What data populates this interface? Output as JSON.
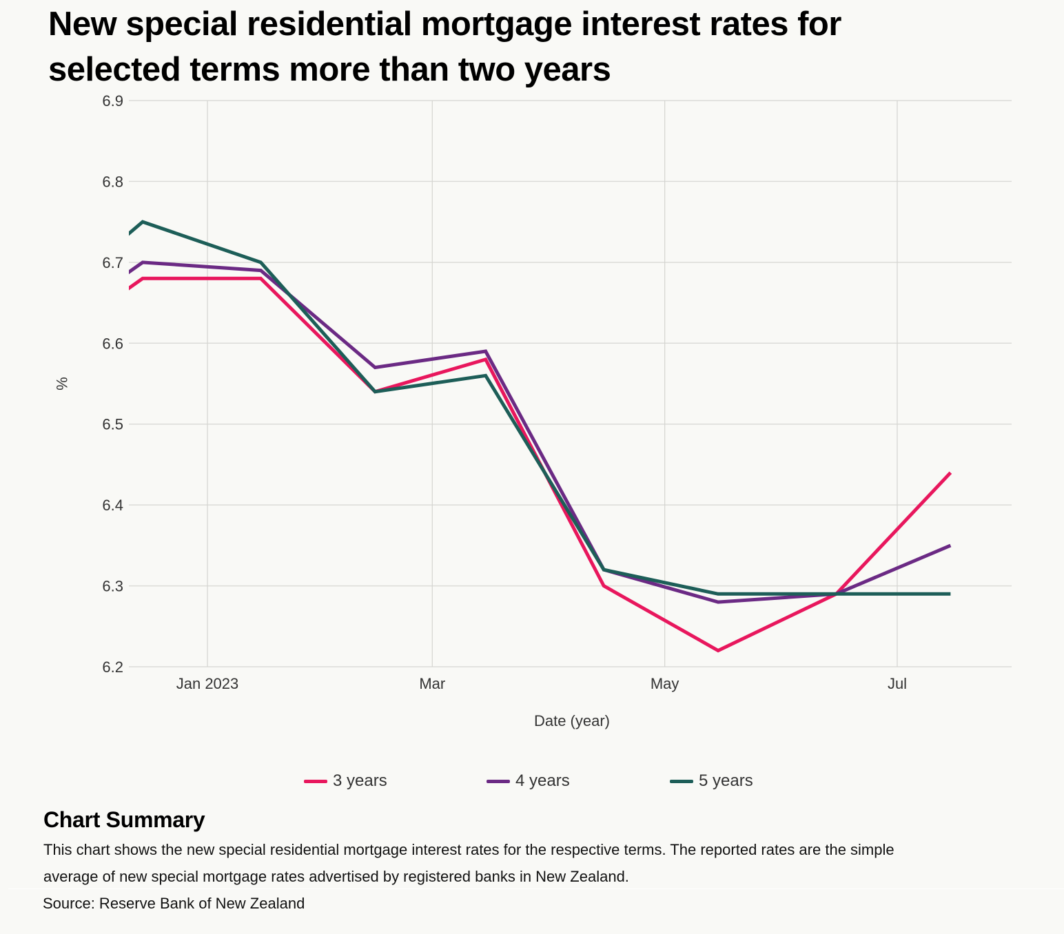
{
  "title": "New special residential mortgage interest rates for selected terms more than two years",
  "chart_data": {
    "type": "line",
    "title": "New special residential mortgage interest rates for selected terms more than two years",
    "xlabel": "Date (year)",
    "ylabel": "%",
    "ylim": [
      6.2,
      6.9
    ],
    "yticks": [
      "6.2",
      "6.3",
      "6.4",
      "6.5",
      "6.6",
      "6.7",
      "6.8",
      "6.9"
    ],
    "xticks": [
      {
        "label": "Jan 2023",
        "date": "2023-01-01"
      },
      {
        "label": "Mar",
        "date": "2023-03-01"
      },
      {
        "label": "May",
        "date": "2023-05-01"
      },
      {
        "label": "Jul",
        "date": "2023-07-01"
      }
    ],
    "xlim": [
      "2022-11-27",
      "2023-08-10"
    ],
    "grid": true,
    "legend_position": "bottom",
    "x": [
      "2022-11-15",
      "2022-12-15",
      "2023-01-15",
      "2023-02-14",
      "2023-03-15",
      "2023-04-15",
      "2023-05-15",
      "2023-06-15",
      "2023-07-15"
    ],
    "series": [
      {
        "name": "3 years",
        "color": "#e8175d",
        "values": [
          6.58,
          6.68,
          6.68,
          6.54,
          6.58,
          6.3,
          6.22,
          6.29,
          6.44
        ]
      },
      {
        "name": "4 years",
        "color": "#6b2a84",
        "values": [
          6.6,
          6.7,
          6.69,
          6.57,
          6.59,
          6.32,
          6.28,
          6.29,
          6.35
        ]
      },
      {
        "name": "5 years",
        "color": "#1d5e58",
        "values": [
          6.63,
          6.75,
          6.7,
          6.54,
          6.56,
          6.32,
          6.29,
          6.29,
          6.29
        ]
      }
    ]
  },
  "legend": {
    "items": [
      {
        "label": "3 years",
        "color": "#e8175d"
      },
      {
        "label": "4 years",
        "color": "#6b2a84"
      },
      {
        "label": "5 years",
        "color": "#1d5e58"
      }
    ]
  },
  "summary": {
    "heading": "Chart Summary",
    "text": "This chart shows the new special residential mortgage interest rates for the respective terms. The reported rates are the simple average of new special mortgage rates advertised by registered banks in New Zealand."
  },
  "source": "Source: Reserve Bank of New Zealand"
}
